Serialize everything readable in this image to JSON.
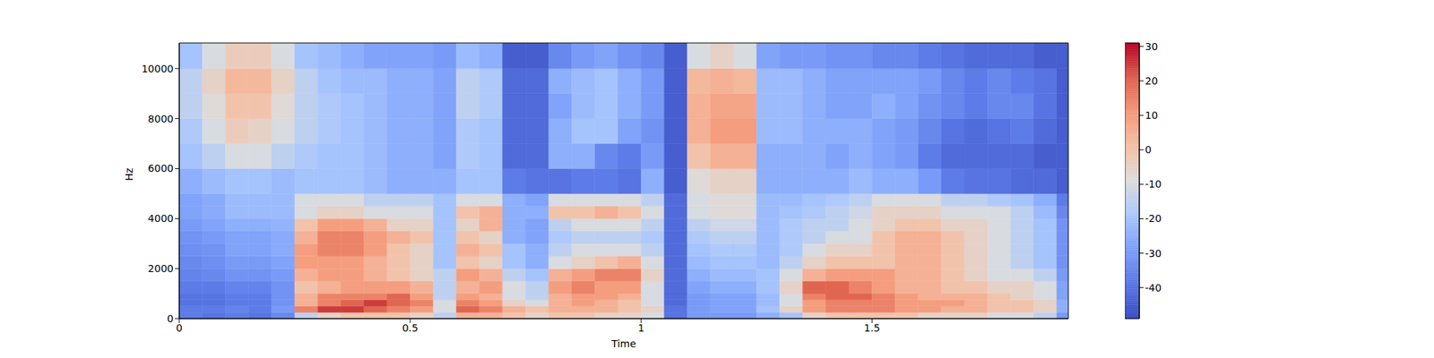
{
  "chart_data": {
    "type": "heatmap",
    "x_label": "Time",
    "y_label": "Hz",
    "xlim": [
      0,
      1.925
    ],
    "xticks": [
      0,
      0.5,
      1,
      1.5
    ],
    "ylim": [
      0,
      11025
    ],
    "yticks": [
      0,
      2000,
      4000,
      6000,
      8000,
      10000
    ],
    "time_edges": [
      0,
      0.05,
      0.1,
      0.15,
      0.2,
      0.25,
      0.3,
      0.35,
      0.4,
      0.45,
      0.5,
      0.55,
      0.6,
      0.65,
      0.7,
      0.75,
      0.8,
      0.85,
      0.9,
      0.95,
      1.0,
      1.05,
      1.1,
      1.15,
      1.2,
      1.25,
      1.3,
      1.35,
      1.4,
      1.45,
      1.5,
      1.55,
      1.6,
      1.65,
      1.7,
      1.75,
      1.8,
      1.85,
      1.9,
      1.925
    ],
    "freq_edges": [
      0,
      250,
      500,
      750,
      1000,
      1500,
      2000,
      2500,
      3000,
      3500,
      4000,
      4500,
      5000,
      6000,
      7000,
      8000,
      9000,
      10000,
      11025
    ],
    "cells": [
      [
        -38,
        -40,
        -38,
        -40,
        -35,
        -15,
        -5,
        0,
        0,
        0,
        -5,
        -15,
        5,
        5,
        0,
        -5,
        0,
        0,
        -5,
        -5,
        -10,
        -40,
        -30,
        -30,
        -30,
        -25,
        -20,
        -5,
        0,
        0,
        0,
        0,
        -5,
        -5,
        -5,
        -10,
        -10,
        -15,
        -30
      ],
      [
        -38,
        -38,
        -36,
        -38,
        -30,
        15,
        25,
        25,
        20,
        15,
        10,
        -10,
        20,
        15,
        5,
        0,
        5,
        5,
        5,
        0,
        -5,
        -40,
        -30,
        -28,
        -28,
        -20,
        -5,
        10,
        15,
        15,
        15,
        10,
        10,
        5,
        5,
        0,
        0,
        -5,
        -25
      ],
      [
        -40,
        -40,
        -38,
        -38,
        -32,
        5,
        15,
        20,
        25,
        20,
        15,
        -10,
        15,
        10,
        -5,
        -10,
        5,
        10,
        5,
        0,
        -10,
        -42,
        -30,
        -28,
        -28,
        -22,
        -10,
        10,
        15,
        15,
        15,
        10,
        10,
        10,
        5,
        0,
        0,
        -5,
        -25
      ],
      [
        -40,
        -40,
        -38,
        -38,
        -32,
        5,
        15,
        15,
        15,
        20,
        10,
        -15,
        10,
        5,
        -10,
        -15,
        5,
        10,
        10,
        5,
        -10,
        -42,
        -30,
        -28,
        -28,
        -22,
        -10,
        15,
        20,
        20,
        15,
        10,
        5,
        5,
        5,
        0,
        -5,
        -10,
        -28
      ],
      [
        -38,
        -38,
        -36,
        -36,
        -32,
        0,
        5,
        10,
        10,
        10,
        5,
        -15,
        5,
        10,
        -10,
        -15,
        10,
        15,
        10,
        10,
        -10,
        -42,
        -28,
        -25,
        -25,
        -20,
        -5,
        20,
        20,
        15,
        10,
        5,
        5,
        0,
        0,
        -5,
        -5,
        -10,
        -28
      ],
      [
        -36,
        -35,
        -32,
        -32,
        -30,
        5,
        10,
        10,
        5,
        0,
        -5,
        -15,
        10,
        5,
        -15,
        -20,
        5,
        10,
        15,
        15,
        -5,
        -42,
        -25,
        -22,
        -22,
        -20,
        -10,
        5,
        10,
        10,
        10,
        5,
        5,
        0,
        -5,
        -10,
        -10,
        -15,
        -30
      ],
      [
        -35,
        -33,
        -30,
        -30,
        -28,
        10,
        10,
        10,
        5,
        0,
        -5,
        -20,
        0,
        -5,
        -20,
        -25,
        -10,
        -5,
        0,
        5,
        -10,
        -42,
        -22,
        -20,
        -20,
        -22,
        -15,
        -5,
        0,
        0,
        0,
        5,
        5,
        0,
        -5,
        -10,
        -15,
        -20,
        -32
      ],
      [
        -33,
        -32,
        -28,
        -28,
        -26,
        10,
        15,
        15,
        10,
        0,
        -5,
        -20,
        5,
        0,
        -20,
        -25,
        -15,
        -10,
        -10,
        -10,
        -15,
        -42,
        -20,
        -18,
        -18,
        -22,
        -18,
        -10,
        -5,
        -5,
        0,
        5,
        5,
        0,
        -5,
        -10,
        -15,
        -20,
        -32
      ],
      [
        -32,
        -30,
        -28,
        -28,
        -26,
        5,
        15,
        15,
        10,
        5,
        0,
        -20,
        0,
        -5,
        -25,
        -28,
        -18,
        -15,
        -15,
        -15,
        -18,
        -42,
        -18,
        -15,
        -15,
        -22,
        -18,
        -15,
        -10,
        -10,
        0,
        5,
        5,
        0,
        -5,
        -10,
        -15,
        -20,
        -32
      ],
      [
        -30,
        -28,
        -25,
        -25,
        -24,
        0,
        10,
        10,
        5,
        -5,
        -5,
        -20,
        -5,
        5,
        -25,
        -28,
        -15,
        -10,
        -10,
        -10,
        -15,
        -42,
        -15,
        -12,
        -12,
        -22,
        -18,
        -15,
        -15,
        -10,
        -5,
        0,
        0,
        -5,
        -5,
        -10,
        -15,
        -20,
        -32
      ],
      [
        -28,
        -26,
        -22,
        -22,
        -22,
        -10,
        -5,
        -5,
        -10,
        -10,
        -10,
        -20,
        0,
        5,
        -25,
        -25,
        0,
        0,
        5,
        0,
        -10,
        -42,
        -10,
        -8,
        -8,
        -22,
        -20,
        -18,
        -15,
        -12,
        -5,
        -5,
        -5,
        -10,
        -10,
        -10,
        -15,
        -22,
        -35
      ],
      [
        -28,
        -26,
        -22,
        -22,
        -22,
        -10,
        -10,
        -10,
        -15,
        -15,
        -15,
        -20,
        -10,
        -10,
        -25,
        -28,
        -10,
        -10,
        -10,
        -10,
        -15,
        -42,
        -10,
        -8,
        -8,
        -22,
        -22,
        -20,
        -18,
        -15,
        -10,
        -10,
        -10,
        -15,
        -15,
        -18,
        -20,
        -25,
        -38
      ],
      [
        -25,
        -22,
        -20,
        -20,
        -22,
        -20,
        -20,
        -20,
        -22,
        -25,
        -25,
        -25,
        -20,
        -20,
        -38,
        -40,
        -40,
        -38,
        -38,
        -40,
        -25,
        -45,
        -8,
        -5,
        -5,
        -25,
        -25,
        -25,
        -25,
        -22,
        -25,
        -25,
        -30,
        -38,
        -40,
        -40,
        -42,
        -42,
        -45
      ],
      [
        -20,
        -15,
        -10,
        -10,
        -15,
        -18,
        -20,
        -20,
        -22,
        -25,
        -25,
        -28,
        -18,
        -20,
        -42,
        -42,
        -25,
        -25,
        -35,
        -38,
        -30,
        -45,
        0,
        5,
        5,
        -25,
        -25,
        -25,
        -28,
        -25,
        -28,
        -30,
        -38,
        -42,
        -42,
        -42,
        -42,
        -45,
        -45
      ],
      [
        -18,
        -10,
        -3,
        -5,
        -10,
        -15,
        -18,
        -20,
        -22,
        -25,
        -25,
        -28,
        -18,
        -20,
        -42,
        -42,
        -25,
        -20,
        -20,
        -28,
        -32,
        -45,
        5,
        10,
        10,
        -22,
        -22,
        -25,
        -25,
        -25,
        -28,
        -30,
        -35,
        -40,
        -42,
        -40,
        -38,
        -42,
        -45
      ],
      [
        -15,
        -8,
        0,
        0,
        -8,
        -15,
        -18,
        -20,
        -22,
        -25,
        -25,
        -28,
        -15,
        -18,
        -42,
        -42,
        -28,
        -22,
        -20,
        -25,
        -30,
        -45,
        5,
        8,
        8,
        -22,
        -22,
        -25,
        -28,
        -28,
        -25,
        -28,
        -32,
        -35,
        -38,
        -35,
        -35,
        -40,
        -45
      ],
      [
        -15,
        -5,
        3,
        3,
        -5,
        -15,
        -20,
        -22,
        -22,
        -25,
        -25,
        -28,
        -15,
        -18,
        -42,
        -42,
        -25,
        -22,
        -20,
        -25,
        -30,
        -45,
        3,
        5,
        3,
        -22,
        -22,
        -25,
        -28,
        -28,
        -28,
        -28,
        -30,
        -35,
        -38,
        -35,
        -38,
        -40,
        -45
      ],
      [
        -20,
        -10,
        -3,
        -3,
        -10,
        -20,
        -22,
        -25,
        -28,
        -28,
        -28,
        -30,
        -22,
        -25,
        -45,
        -45,
        -35,
        -30,
        -28,
        -32,
        -35,
        -45,
        -10,
        -5,
        -10,
        -28,
        -30,
        -30,
        -32,
        -32,
        -35,
        -35,
        -38,
        -40,
        -42,
        -42,
        -42,
        -45,
        -45
      ]
    ],
    "colorbar": {
      "range": [
        -49,
        31
      ],
      "ticks": [
        -40,
        -30,
        -20,
        -10,
        0,
        10,
        20,
        30
      ]
    }
  }
}
